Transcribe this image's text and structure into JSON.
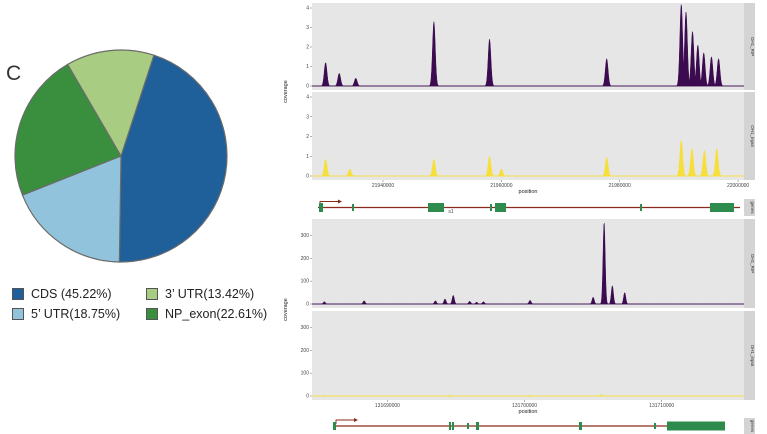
{
  "panel_label": "C",
  "colors": {
    "cds": "#1f5f9a",
    "utr5": "#92c3dc",
    "utr3": "#a8cc82",
    "np_exon": "#3a8f3e",
    "rip": "#3b0a4f",
    "input": "#f6df3a",
    "panel_bg": "#e6e6e6",
    "strip_bg": "#d4d4d4",
    "exon": "#2d8b4e",
    "intron": "#8b2a1a"
  },
  "chart_data": [
    {
      "type": "pie",
      "title": "",
      "legend": [
        {
          "key": "cds",
          "label": "CDS (45.22%)",
          "value": 45.22
        },
        {
          "key": "utr3",
          "label": "3’ UTR(13.42%)",
          "value": 13.42
        },
        {
          "key": "utr5",
          "label": "5’ UTR(18.75%)",
          "value": 18.75
        },
        {
          "key": "np_exon",
          "label": "NP_exon(22.61%)",
          "value": 22.61
        }
      ],
      "slice_order": [
        "cds",
        "utr5",
        "np_exon",
        "utr3"
      ],
      "legend_placement": "bottom"
    },
    {
      "type": "area",
      "xlabel": "position",
      "ylabel": "coverage",
      "xticks": [
        "21940000",
        "21960000",
        "21980000",
        "22000000"
      ],
      "x_range": [
        21928000,
        22001000
      ],
      "ylim": [
        0,
        4
      ],
      "yticks": [
        "0",
        "1",
        "2",
        "3",
        "4"
      ],
      "series": [
        {
          "name": "OH1_RIP",
          "color_key": "rip",
          "peaks": [
            [
              21930300,
              1.2
            ],
            [
              21932600,
              0.65
            ],
            [
              21935400,
              0.4
            ],
            [
              21948600,
              3.3
            ],
            [
              21958000,
              2.4
            ],
            [
              21977800,
              1.4
            ],
            [
              21990400,
              4.2
            ],
            [
              21991200,
              3.8
            ],
            [
              21992300,
              2.8
            ],
            [
              21993200,
              2.1
            ],
            [
              21994200,
              1.7
            ],
            [
              21995500,
              1.5
            ],
            [
              21996700,
              1.4
            ]
          ]
        },
        {
          "name": "OH1_input",
          "color_key": "input",
          "peaks": [
            [
              21930300,
              0.85
            ],
            [
              21934400,
              0.35
            ],
            [
              21948600,
              0.85
            ],
            [
              21958000,
              1.0
            ],
            [
              21960000,
              0.35
            ],
            [
              21977800,
              0.95
            ],
            [
              21990400,
              1.8
            ],
            [
              21992200,
              1.4
            ],
            [
              21994300,
              1.3
            ],
            [
              21996400,
              1.4
            ]
          ]
        }
      ],
      "gene_strip": "genes",
      "gene_label": "s1"
    },
    {
      "type": "area",
      "xlabel": "position",
      "ylabel": "coverage",
      "xticks": [
        "131690000",
        "131700000",
        "131710000"
      ],
      "x_range": [
        131684500,
        131716000
      ],
      "ylim": [
        0,
        350
      ],
      "yticks": [
        "0",
        "100",
        "200",
        "300"
      ],
      "series": [
        {
          "name": "OH1_RIP",
          "color_key": "rip",
          "peaks": [
            [
              131685400,
              10
            ],
            [
              131688300,
              14
            ],
            [
              131693500,
              14
            ],
            [
              131694200,
              22
            ],
            [
              131694800,
              38
            ],
            [
              131696000,
              12
            ],
            [
              131696500,
              8
            ],
            [
              131697000,
              10
            ],
            [
              131700400,
              16
            ],
            [
              131705000,
              30
            ],
            [
              131705800,
              360
            ],
            [
              131706400,
              80
            ],
            [
              131707300,
              50
            ]
          ]
        },
        {
          "name": "OH1_input",
          "color_key": "input",
          "peaks": [
            [
              131685400,
              3
            ],
            [
              131694500,
              4
            ],
            [
              131700400,
              3
            ],
            [
              131705600,
              6
            ]
          ]
        }
      ],
      "gene_strip": "genes"
    }
  ]
}
